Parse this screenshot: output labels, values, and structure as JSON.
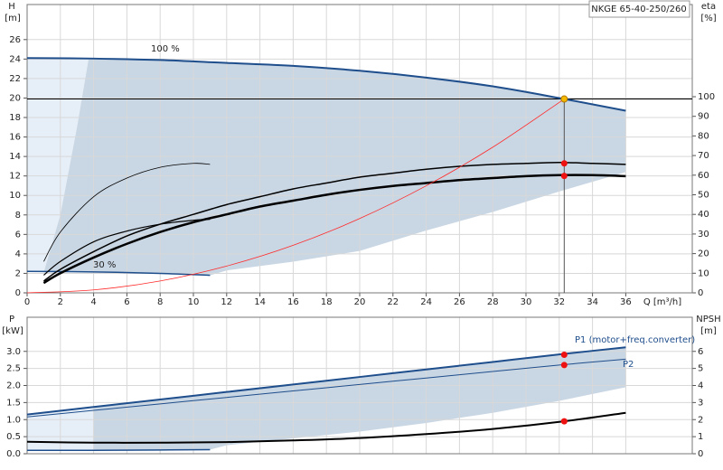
{
  "chart_data": [
    {
      "type": "line",
      "title": "NKGE 65-40-250/260",
      "xlabel": "Q [m³/h]",
      "ylabel": "H",
      "yunit": "[m]",
      "y2label": "eta",
      "y2unit": "[%]",
      "xlim": [
        0,
        40
      ],
      "xticks": [
        0,
        2,
        4,
        6,
        8,
        10,
        12,
        14,
        16,
        18,
        20,
        22,
        24,
        26,
        28,
        30,
        32,
        34,
        36
      ],
      "ylim": [
        0,
        29.6
      ],
      "yticks": [
        0,
        2,
        4,
        6,
        8,
        10,
        12,
        14,
        16,
        18,
        20,
        22,
        24,
        26
      ],
      "y2lim": [
        0,
        147
      ],
      "y2ticks": [
        0,
        10,
        20,
        30,
        40,
        50,
        60,
        70,
        80,
        90,
        100
      ],
      "grid": true,
      "areas": [
        {
          "color": "#e6eff8",
          "x": [
            0,
            1,
            2,
            3,
            3.7,
            0
          ],
          "y": [
            2.2,
            2.1,
            8,
            17,
            24.05,
            24.1
          ]
        },
        {
          "color": "#c9d6e3",
          "x": [
            1,
            2,
            3,
            3.7,
            8,
            12,
            16,
            20,
            24,
            28,
            32,
            36,
            36,
            32,
            28,
            24,
            20,
            16,
            12,
            11,
            8,
            4
          ],
          "y": [
            2.1,
            8,
            17,
            24.05,
            23.9,
            23.6,
            23.3,
            22.8,
            22.1,
            21.2,
            20,
            18.7,
            12.4,
            10.4,
            8.3,
            6.4,
            4.3,
            3.2,
            2.3,
            1.8,
            2.0,
            2.15
          ]
        }
      ],
      "series": [
        {
          "name": "100 %",
          "color": "#1f4e8c",
          "width": 2,
          "x": [
            0,
            4,
            8,
            12,
            16,
            20,
            24,
            28,
            32,
            36
          ],
          "values": [
            24.1,
            24.05,
            23.9,
            23.6,
            23.3,
            22.8,
            22.1,
            21.2,
            20,
            18.7
          ]
        },
        {
          "name": "30 %",
          "color": "#1f4e8c",
          "width": 1.5,
          "x": [
            0,
            4,
            8,
            11
          ],
          "values": [
            2.2,
            2.15,
            2.0,
            1.8
          ]
        },
        {
          "color": "#000000",
          "width": 1.5,
          "axis": "y2",
          "x": [
            1,
            2,
            4,
            6,
            8,
            10,
            12,
            14,
            16,
            18,
            20,
            22,
            24,
            26,
            28,
            30,
            32,
            34,
            36
          ],
          "values": [
            6,
            12,
            21,
            29,
            35,
            40,
            45,
            49,
            53,
            56,
            59,
            61,
            63,
            64.5,
            65.5,
            66,
            66.5,
            66,
            65.5
          ]
        },
        {
          "color": "#000000",
          "width": 2.5,
          "axis": "y2",
          "x": [
            1,
            2,
            4,
            6,
            8,
            10,
            12,
            14,
            16,
            18,
            20,
            22,
            24,
            26,
            28,
            30,
            32,
            34,
            36
          ],
          "values": [
            5,
            10,
            18,
            25,
            31,
            36,
            40,
            44,
            47,
            50,
            52.5,
            54.5,
            56,
            57.5,
            58.5,
            59.5,
            60,
            60,
            59.5
          ]
        },
        {
          "color": "#000000",
          "width": 0.8,
          "axis": "y2",
          "x": [
            1,
            2,
            4,
            6,
            8,
            10,
            11
          ],
          "values": [
            16,
            31,
            49,
            58.5,
            64,
            66,
            65.5
          ]
        },
        {
          "color": "#000000",
          "width": 1.2,
          "axis": "y2",
          "x": [
            1,
            2,
            4,
            6,
            8,
            10,
            11
          ],
          "values": [
            9,
            16,
            26,
            31.5,
            35,
            37,
            37.5
          ]
        },
        {
          "color": "#ff2a2a",
          "width": 0.8,
          "x": [
            0,
            4,
            8,
            12,
            16,
            20,
            24,
            28,
            32.3
          ],
          "values": [
            0,
            0.305,
            1.22,
            2.75,
            4.88,
            7.63,
            10.99,
            14.95,
            19.9
          ]
        }
      ],
      "reference": {
        "x": 32.3,
        "y": 19.9
      },
      "points": [
        {
          "color": "#f5b800",
          "x": 32.3,
          "y": 19.9
        },
        {
          "color": "#ee1111",
          "axis": "y2",
          "x": 32.3,
          "y": 66
        },
        {
          "color": "#ee1111",
          "axis": "y2",
          "x": 32.3,
          "y": 59.6
        }
      ]
    },
    {
      "type": "line",
      "ylabel": "P",
      "yunit": "[kW]",
      "y2label": "NPSH",
      "y2unit": "[m]",
      "xlim": [
        0,
        40
      ],
      "ylim": [
        0,
        4
      ],
      "yticks": [
        {
          "value": 0,
          "label": "0.0"
        },
        0.5,
        {
          "value": 1,
          "label": "1.0"
        },
        1.5,
        {
          "value": 2,
          "label": "2.0"
        },
        2.5,
        {
          "value": 3,
          "label": "3.0"
        }
      ],
      "y2lim": [
        0,
        8
      ],
      "y2ticks": [
        0,
        1,
        2,
        3,
        4,
        5,
        6
      ],
      "grid": true,
      "areas": [
        {
          "color": "#e6eff8",
          "x": [
            0,
            4,
            4,
            0
          ],
          "y": [
            1.15,
            1.37,
            0.1,
            0.1
          ]
        },
        {
          "color": "#c9d6e3",
          "x": [
            4,
            8,
            12,
            16,
            20,
            24,
            28,
            32,
            36,
            36,
            32,
            28,
            24,
            20,
            16,
            12,
            11,
            4
          ],
          "y": [
            1.37,
            1.59,
            1.81,
            2.03,
            2.25,
            2.47,
            2.69,
            2.91,
            3.12,
            1.95,
            1.55,
            1.2,
            0.9,
            0.65,
            0.45,
            0.25,
            0.12,
            0.1
          ]
        }
      ],
      "series": [
        {
          "name": "P1 (motor+freq.converter)",
          "color": "#1f4e8c",
          "width": 2,
          "x": [
            0,
            4,
            8,
            12,
            16,
            20,
            24,
            28,
            32,
            36
          ],
          "values": [
            1.15,
            1.37,
            1.59,
            1.81,
            2.03,
            2.25,
            2.47,
            2.69,
            2.91,
            3.12
          ]
        },
        {
          "name": "P2",
          "color": "#1f4e8c",
          "width": 1,
          "x": [
            0,
            4,
            8,
            12,
            16,
            20,
            24,
            28,
            32,
            36
          ],
          "values": [
            1.08,
            1.27,
            1.46,
            1.65,
            1.84,
            2.03,
            2.22,
            2.41,
            2.6,
            2.77
          ]
        },
        {
          "color": "#1f4e8c",
          "width": 1.5,
          "x": [
            0,
            4,
            8,
            11
          ],
          "values": [
            0.1,
            0.1,
            0.11,
            0.12
          ]
        },
        {
          "color": "#000000",
          "width": 2,
          "axis": "y2",
          "x": [
            0,
            4,
            8,
            12,
            16,
            20,
            24,
            28,
            32.3,
            36
          ],
          "values": [
            0.7,
            0.65,
            0.65,
            0.68,
            0.78,
            0.92,
            1.15,
            1.45,
            1.9,
            2.4
          ]
        }
      ],
      "points": [
        {
          "color": "#ee1111",
          "x": 32.3,
          "y": 2.9
        },
        {
          "color": "#ee1111",
          "x": 32.3,
          "y": 2.6
        },
        {
          "color": "#ee1111",
          "axis": "y2",
          "x": 32.3,
          "y": 1.9
        }
      ]
    }
  ]
}
